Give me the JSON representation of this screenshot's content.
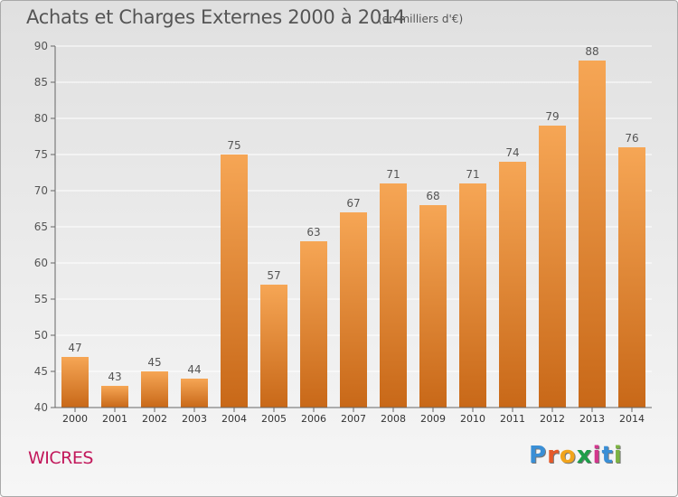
{
  "title": "Achats et Charges Externes 2000 à 2014",
  "subtitle": "(en milliers d'€)",
  "city": "WICRES",
  "brand": {
    "letters": [
      "P",
      "r",
      "o",
      "x",
      "i",
      "t",
      "i"
    ],
    "colors": [
      "#3a8fd6",
      "#e65a2a",
      "#f2a51c",
      "#1f9e4a",
      "#d2378d",
      "#3a8fd6",
      "#7cb342"
    ]
  },
  "colors": {
    "bar_light": "#f6a655",
    "bar_dark": "#c86818",
    "text": "#555555",
    "grid": "#ffffff"
  },
  "chart_data": {
    "type": "bar",
    "categories": [
      "2000",
      "2001",
      "2002",
      "2003",
      "2004",
      "2005",
      "2006",
      "2007",
      "2008",
      "2009",
      "2010",
      "2011",
      "2012",
      "2013",
      "2014"
    ],
    "values": [
      47,
      43,
      45,
      44,
      75,
      57,
      63,
      67,
      71,
      68,
      71,
      74,
      79,
      88,
      76
    ],
    "ylim": [
      40,
      90
    ],
    "yticks": [
      40,
      45,
      50,
      55,
      60,
      65,
      70,
      75,
      80,
      85,
      90
    ],
    "grid": true,
    "data_labels": true
  }
}
